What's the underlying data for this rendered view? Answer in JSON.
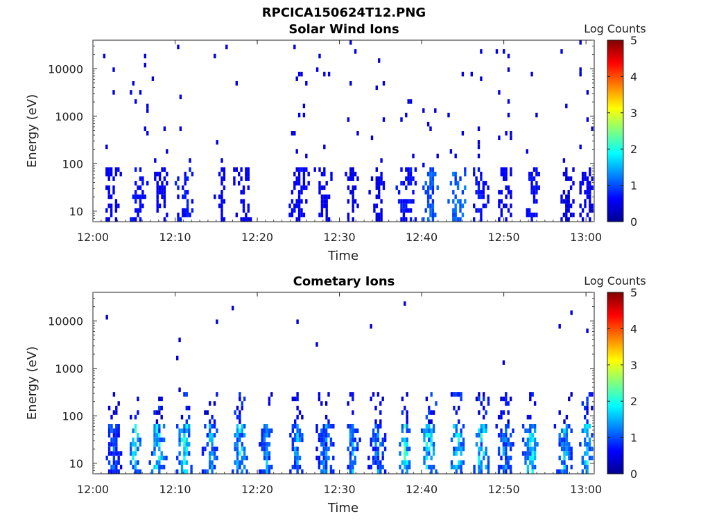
{
  "figure_title": "RPCICA150624T12.PNG",
  "chart_data": [
    {
      "type": "heatmap",
      "title": "Solar Wind Ions",
      "xlabel": "Time",
      "ylabel": "Energy (eV)",
      "x_ticks": [
        "12:00",
        "12:10",
        "12:20",
        "12:30",
        "12:40",
        "12:50",
        "13:00"
      ],
      "xlim_minutes": [
        0,
        61
      ],
      "y_scale": "log",
      "y_ticks": [
        "10",
        "100",
        "1000",
        "10000"
      ],
      "ylim": [
        6,
        40000
      ],
      "colorbar_label": "Log Counts",
      "colorbar_ticks": [
        "0",
        "1",
        "2",
        "3",
        "4",
        "5"
      ],
      "colorbar_range": [
        0,
        5
      ],
      "colormap": "jet",
      "bursts_minutes": [
        2.3,
        5.5,
        8.0,
        11.0,
        15.5,
        18.2,
        25.0,
        28.0,
        31.5,
        34.5,
        38.0,
        41.0,
        44.2,
        47.0,
        50.0,
        53.5,
        57.5,
        60.0
      ],
      "burst_peak_log_counts": [
        0.3,
        0.4,
        0.3,
        0.45,
        0.3,
        0.3,
        0.35,
        0.3,
        0.25,
        0.25,
        0.45,
        0.8,
        0.9,
        0.45,
        0.3,
        0.4,
        0.2,
        0.3
      ]
    },
    {
      "type": "heatmap",
      "title": "Cometary Ions",
      "xlabel": "Time",
      "ylabel": "Energy (eV)",
      "x_ticks": [
        "12:00",
        "12:10",
        "12:20",
        "12:30",
        "12:40",
        "12:50",
        "13:00"
      ],
      "xlim_minutes": [
        0,
        61
      ],
      "y_scale": "log",
      "y_ticks": [
        "10",
        "100",
        "1000",
        "10000"
      ],
      "ylim": [
        6,
        40000
      ],
      "colorbar_label": "Log Counts",
      "colorbar_ticks": [
        "0",
        "1",
        "2",
        "3",
        "4",
        "5"
      ],
      "colorbar_range": [
        0,
        5
      ],
      "colormap": "jet",
      "bursts_minutes": [
        2.3,
        5.0,
        7.8,
        11.0,
        14.2,
        17.8,
        21.0,
        24.8,
        28.2,
        31.5,
        34.5,
        37.8,
        40.8,
        44.2,
        47.2,
        50.0,
        53.2,
        57.2,
        60.0
      ],
      "burst_peak_log_counts": [
        1.0,
        1.9,
        1.8,
        2.0,
        1.5,
        1.8,
        1.3,
        1.5,
        1.2,
        1.3,
        1.2,
        2.0,
        2.2,
        1.9,
        2.0,
        1.4,
        1.9,
        1.4,
        1.7
      ]
    }
  ]
}
